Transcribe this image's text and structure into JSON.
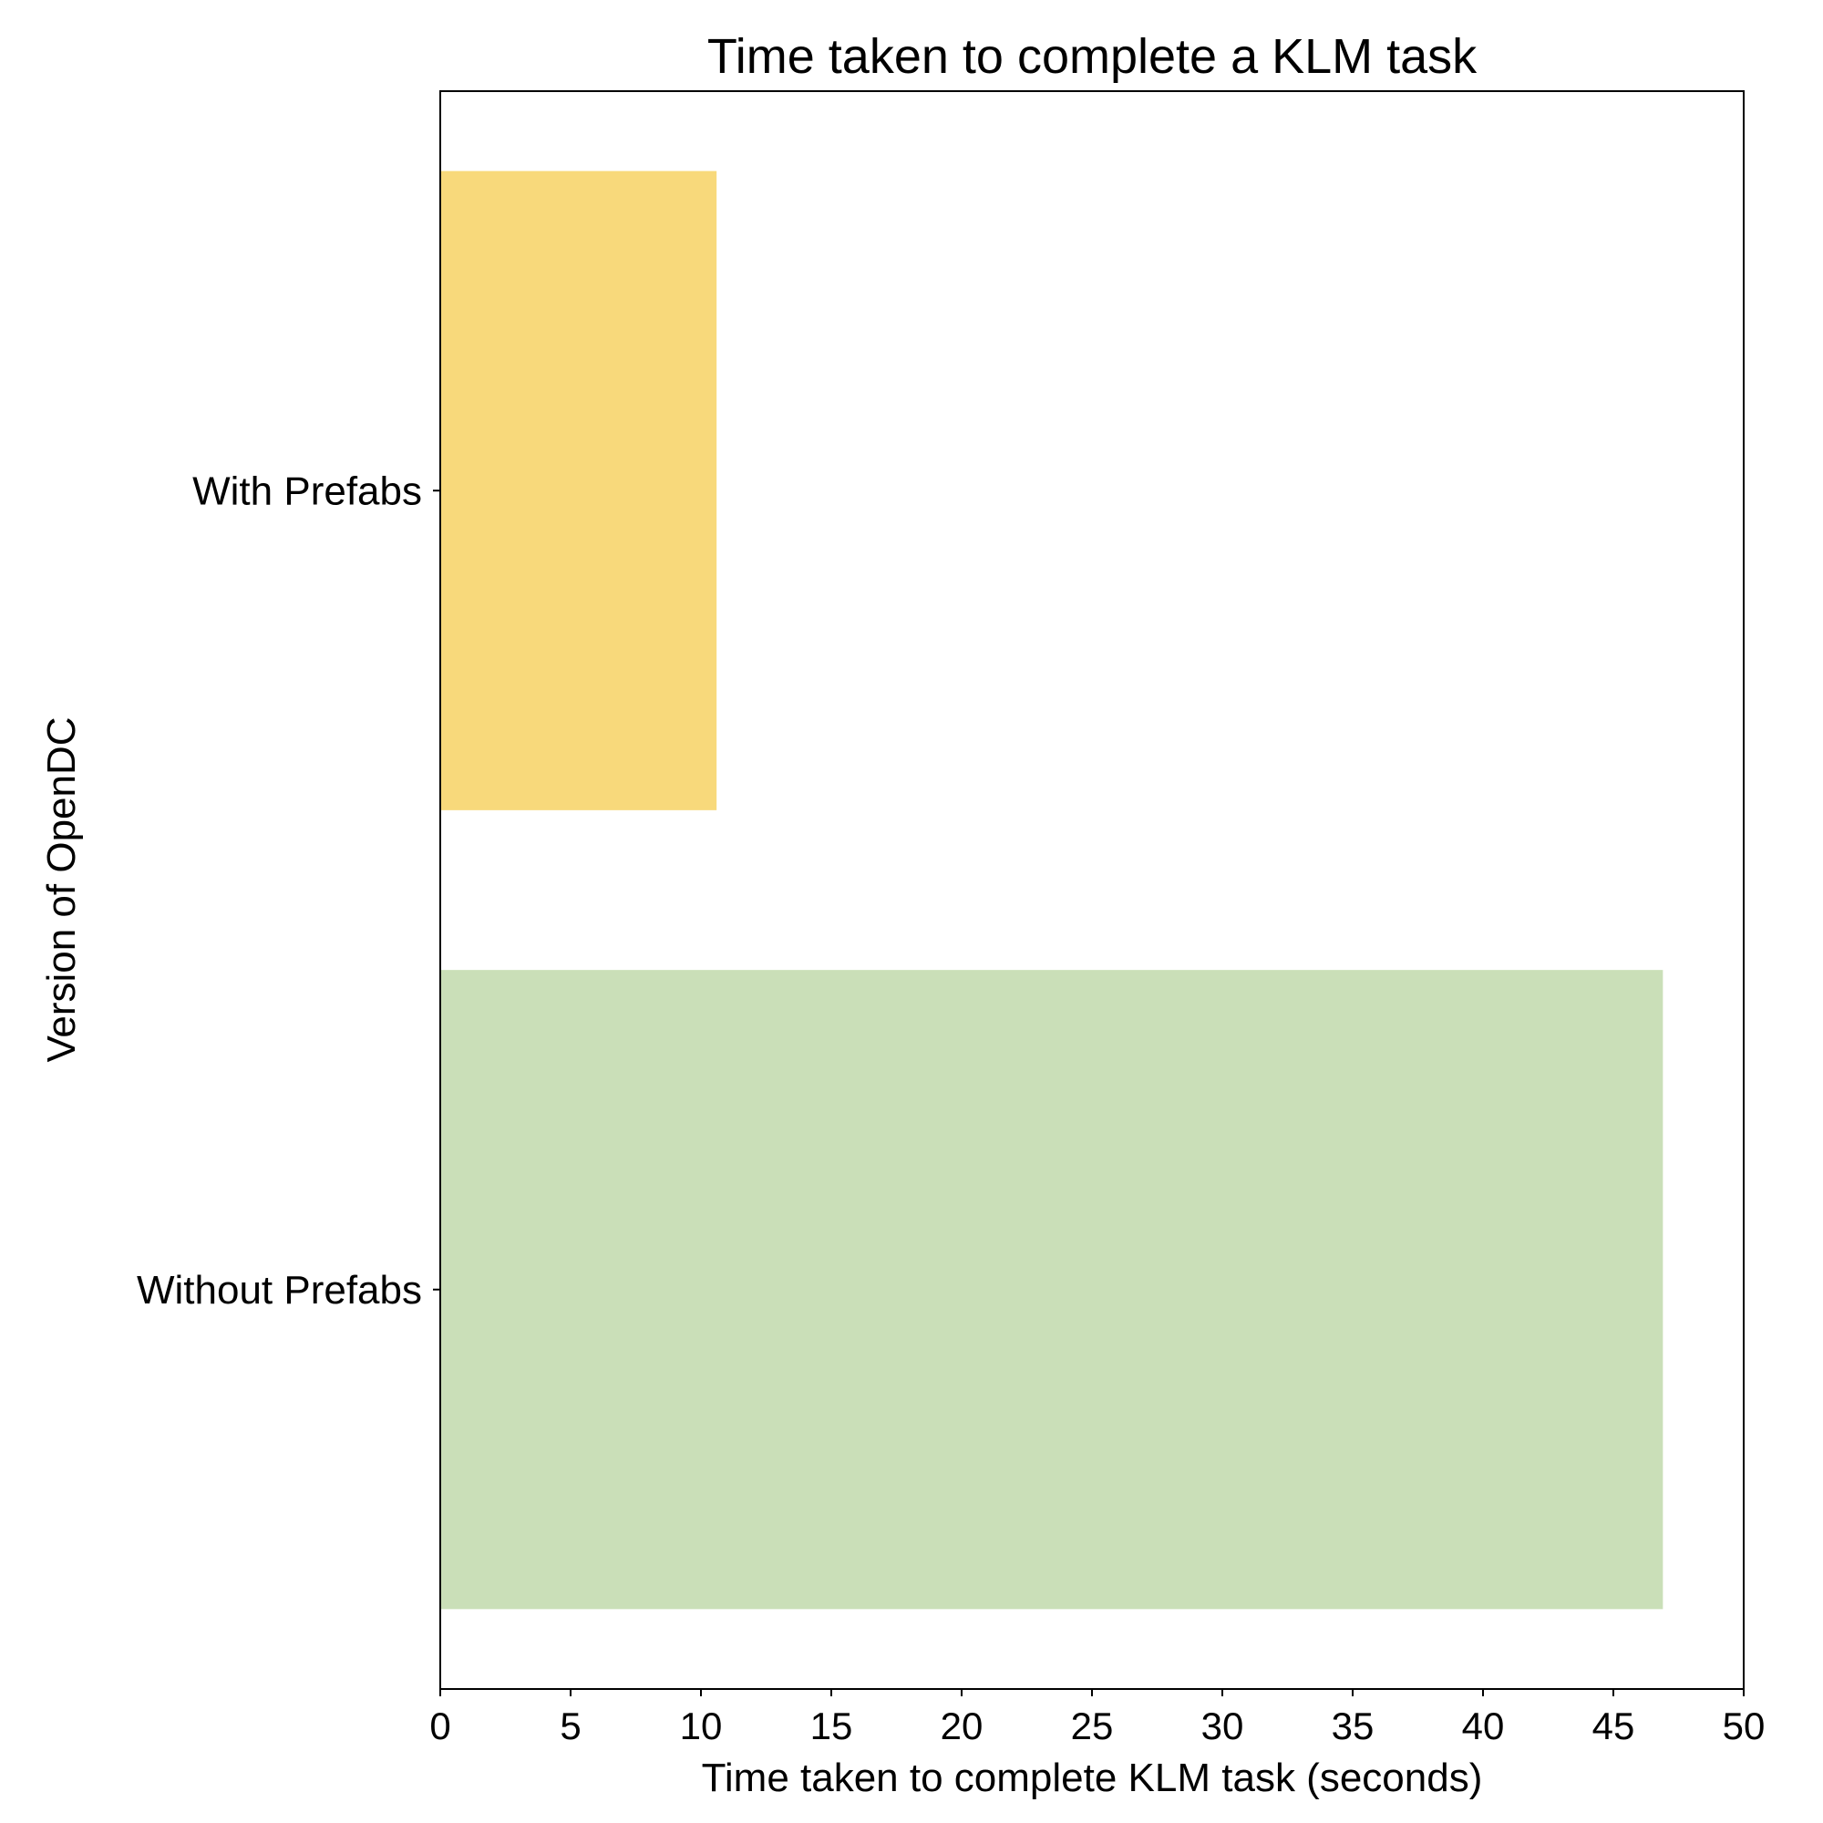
{
  "chart_data": {
    "type": "bar",
    "orientation": "horizontal",
    "title": "Time taken to complete a KLM task",
    "xlabel": "Time taken to complete KLM task (seconds)",
    "ylabel": "Version of OpenDC",
    "categories": [
      "With Prefabs",
      "Without Prefabs"
    ],
    "values": [
      10.6,
      46.9
    ],
    "colors": [
      "#f8d97b",
      "#cadfb8"
    ],
    "xlim": [
      0,
      50
    ],
    "xticks": [
      0,
      5,
      10,
      15,
      20,
      25,
      30,
      35,
      40,
      45,
      50
    ],
    "grid": false,
    "legend": "none"
  }
}
